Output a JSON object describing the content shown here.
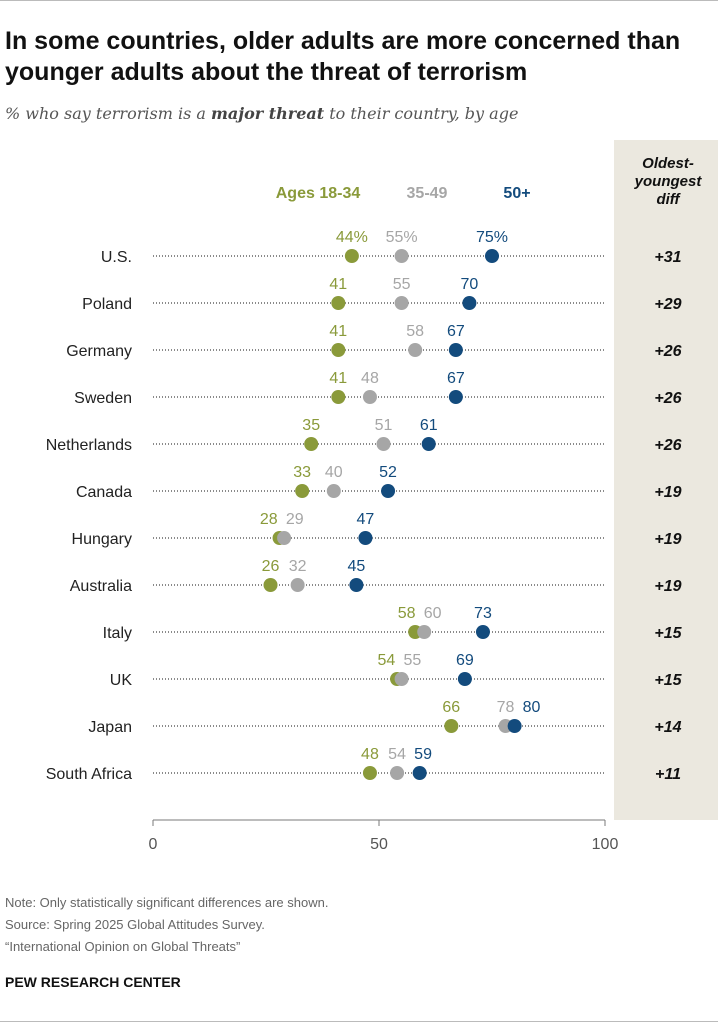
{
  "title_html": "In some countries, older adults are more concerned than younger adults about the threat of terrorism",
  "title": "In some countries, older adults are more concerned than younger adults about the threat of terrorism",
  "subtitle": {
    "prefix": "% who say terrorism is a ",
    "emphasis": "major threat",
    "suffix": " to their country, by age"
  },
  "colors": {
    "young": "#8a9a3a",
    "middle": "#a6a6a6",
    "old": "#134b7d",
    "panel": "#ebe8df",
    "dots_line": "#8a8a8a",
    "axis": "#7a7a7a"
  },
  "chart_data": {
    "type": "dot",
    "title": "In some countries, older adults are more concerned than younger adults about the threat of terrorism",
    "xlabel": "",
    "ylabel": "",
    "xlim": [
      0,
      100
    ],
    "x_ticks": [
      0,
      50,
      100
    ],
    "categories": [
      "U.S.",
      "Poland",
      "Germany",
      "Sweden",
      "Netherlands",
      "Canada",
      "Hungary",
      "Australia",
      "Italy",
      "UK",
      "Japan",
      "South Africa"
    ],
    "series": [
      {
        "name": "Ages 18-34",
        "key": "young",
        "values": [
          44,
          41,
          41,
          41,
          35,
          33,
          28,
          26,
          58,
          54,
          66,
          48
        ]
      },
      {
        "name": "35-49",
        "key": "middle",
        "values": [
          55,
          55,
          58,
          48,
          51,
          40,
          29,
          32,
          60,
          55,
          78,
          54
        ]
      },
      {
        "name": "50+",
        "key": "old",
        "values": [
          75,
          70,
          67,
          67,
          61,
          52,
          47,
          45,
          73,
          69,
          80,
          59
        ]
      }
    ],
    "label_texts": {
      "young": [
        "44%",
        "41",
        "41",
        "41",
        "35",
        "33",
        "28",
        "26",
        "58",
        "54",
        "66",
        "48"
      ],
      "middle": [
        "55%",
        "55",
        "58",
        "48",
        "51",
        "40",
        "29",
        "32",
        "60",
        "55",
        "78",
        "54"
      ],
      "old": [
        "75%",
        "70",
        "67",
        "67",
        "61",
        "52",
        "47",
        "45",
        "73",
        "69",
        "80",
        "59"
      ]
    },
    "diff_column": {
      "header_lines": [
        "Oldest-",
        "youngest",
        "diff"
      ],
      "values": [
        "+31",
        "+29",
        "+26",
        "+26",
        "+26",
        "+19",
        "+19",
        "+19",
        "+15",
        "+15",
        "+14",
        "+11"
      ]
    }
  },
  "notes": {
    "note": "Note: Only statistically significant differences are shown.",
    "source": "Source: Spring 2025 Global Attitudes Survey.",
    "report": "“International Opinion on Global Threats”"
  },
  "brand": "PEW RESEARCH CENTER"
}
